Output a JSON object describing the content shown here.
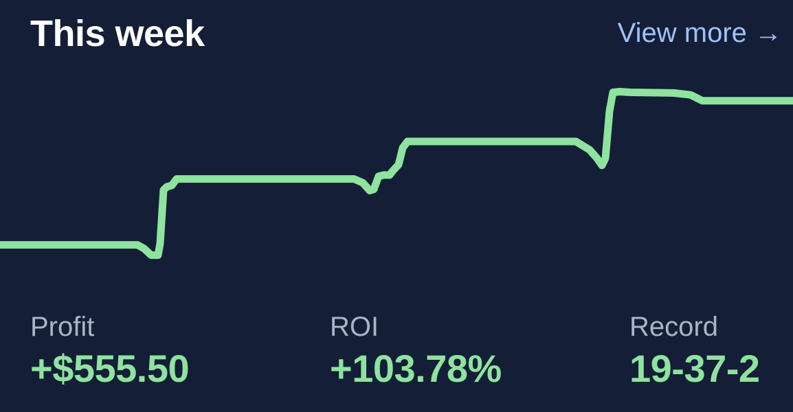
{
  "header": {
    "title": "This week",
    "view_more_label": "View more →"
  },
  "chart_data": {
    "type": "line",
    "line_color": "#8ee39f",
    "background": "#141e36",
    "grid": false,
    "legend": "none",
    "ylim": [
      0,
      340
    ],
    "points": [
      [
        0,
        78
      ],
      [
        200,
        78
      ],
      [
        210,
        72
      ],
      [
        220,
        62
      ],
      [
        230,
        62
      ],
      [
        233,
        80
      ],
      [
        238,
        163
      ],
      [
        243,
        168
      ],
      [
        250,
        170
      ],
      [
        257,
        180
      ],
      [
        270,
        180
      ],
      [
        515,
        180
      ],
      [
        528,
        174
      ],
      [
        538,
        162
      ],
      [
        544,
        164
      ],
      [
        551,
        184
      ],
      [
        558,
        186
      ],
      [
        567,
        186
      ],
      [
        572,
        193
      ],
      [
        580,
        202
      ],
      [
        586,
        228
      ],
      [
        593,
        238
      ],
      [
        610,
        238
      ],
      [
        838,
        238
      ],
      [
        858,
        225
      ],
      [
        868,
        213
      ],
      [
        876,
        201
      ],
      [
        881,
        212
      ],
      [
        887,
        285
      ],
      [
        892,
        314
      ],
      [
        902,
        315
      ],
      [
        918,
        314
      ],
      [
        980,
        313
      ],
      [
        1005,
        310
      ],
      [
        1022,
        301
      ],
      [
        1154,
        301
      ]
    ]
  },
  "stats": {
    "profit": {
      "label": "Profit",
      "value": "+$555.50"
    },
    "roi": {
      "label": "ROI",
      "value": "+103.78%"
    },
    "record": {
      "label": "Record",
      "value": "19-37-2"
    }
  },
  "colors": {
    "background": "#141e36",
    "title": "#ffffff",
    "link": "#9fc2f8",
    "label": "#a9b4c7",
    "positive": "#8ee39f"
  }
}
